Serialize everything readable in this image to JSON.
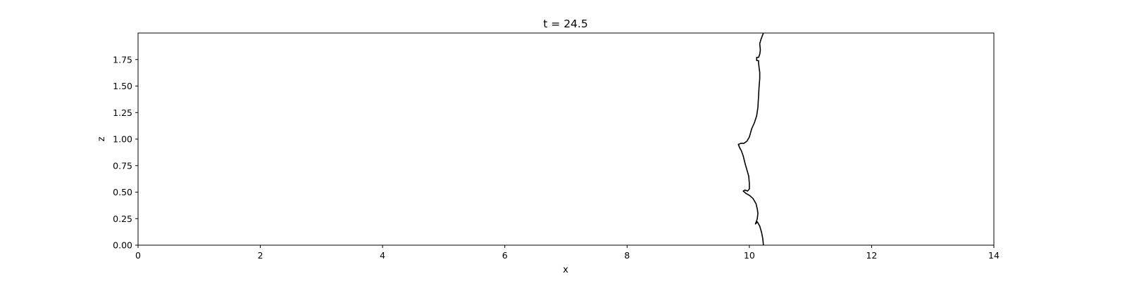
{
  "chart_data": {
    "type": "line",
    "title": "t = 24.5",
    "xlabel": "x",
    "ylabel": "z",
    "xlim": [
      0,
      14
    ],
    "ylim": [
      0,
      2
    ],
    "xticks": [
      0,
      2,
      4,
      6,
      8,
      10,
      12,
      14
    ],
    "xtick_labels": [
      "0",
      "2",
      "4",
      "6",
      "8",
      "10",
      "12",
      "14"
    ],
    "yticks": [
      0.0,
      0.25,
      0.5,
      0.75,
      1.0,
      1.25,
      1.5,
      1.75
    ],
    "ytick_labels": [
      "0.00",
      "0.25",
      "0.50",
      "0.75",
      "1.00",
      "1.25",
      "1.50",
      "1.75"
    ],
    "grid": false,
    "line_color": "#000000",
    "series": [
      {
        "x": [
          10.23,
          10.22,
          10.2,
          10.17,
          10.13,
          10.1,
          10.13,
          10.14,
          10.13,
          10.11,
          10.06,
          10.0,
          9.94,
          9.92,
          9.9,
          9.93,
          9.97,
          10.0,
          10.0,
          9.99,
          9.96,
          9.93,
          9.9,
          9.87,
          9.84,
          9.82,
          9.86,
          9.91,
          9.96,
          10.0,
          10.02,
          10.04,
          10.08,
          10.12,
          10.14,
          10.15,
          10.16,
          10.17,
          10.17,
          10.16,
          10.15,
          10.15,
          10.12,
          10.12,
          10.15,
          10.17,
          10.18,
          10.17,
          10.19,
          10.21,
          10.23
        ],
        "y": [
          0.0,
          0.06,
          0.12,
          0.18,
          0.22,
          0.2,
          0.25,
          0.3,
          0.34,
          0.39,
          0.44,
          0.47,
          0.49,
          0.5,
          0.51,
          0.52,
          0.51,
          0.53,
          0.58,
          0.65,
          0.71,
          0.77,
          0.84,
          0.89,
          0.92,
          0.95,
          0.96,
          0.96,
          0.98,
          1.02,
          1.06,
          1.1,
          1.15,
          1.22,
          1.3,
          1.4,
          1.5,
          1.57,
          1.63,
          1.67,
          1.72,
          1.74,
          1.74,
          1.77,
          1.77,
          1.8,
          1.84,
          1.9,
          1.94,
          1.97,
          2.0
        ]
      }
    ]
  }
}
